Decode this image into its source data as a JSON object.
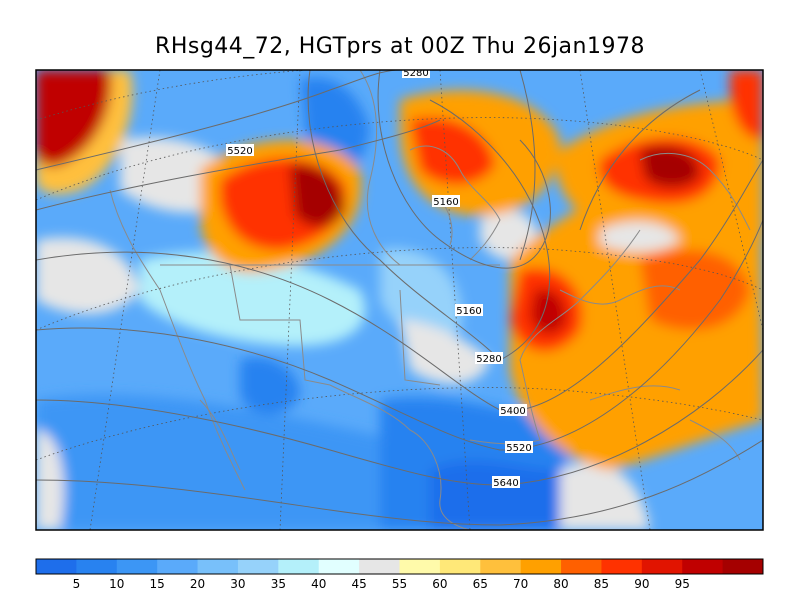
{
  "title": "RHsg44_72, HGTprs at 00Z Thu 26jan1978",
  "map": {
    "field": "RHsg44_72",
    "contour_field": "HGTprs",
    "contour_labels": [
      "5280",
      "5520",
      "5160",
      "5160",
      "5280",
      "5400",
      "5520",
      "5640"
    ]
  },
  "colorbar": {
    "colors": [
      "#1e6eeb",
      "#2882f0",
      "#3c96f5",
      "#5aaafa",
      "#78c0fa",
      "#96d2fa",
      "#b4f0fa",
      "#e1ffff",
      "#e6e6e6",
      "#fffaaa",
      "#ffe878",
      "#ffc03c",
      "#ffa000",
      "#ff6000",
      "#ff3200",
      "#e11400",
      "#c00000",
      "#a50000"
    ],
    "tick_labels": [
      "5",
      "10",
      "15",
      "20",
      "30",
      "35",
      "40",
      "45",
      "55",
      "60",
      "65",
      "70",
      "80",
      "85",
      "90",
      "95"
    ]
  }
}
